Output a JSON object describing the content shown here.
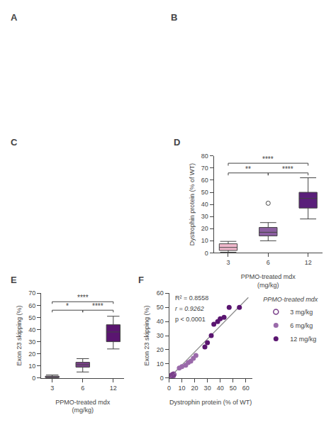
{
  "chart_data": [
    {
      "type": "blank",
      "title": "A"
    },
    {
      "type": "blank",
      "title": "B"
    },
    {
      "type": "blank",
      "title": "C"
    },
    {
      "type": "box",
      "title": "D",
      "xlabel": "PPMO-treated mdx\n(mg/kg)",
      "ylabel": "Dystrophin protein (% of WT)",
      "categories": [
        "3",
        "6",
        "12"
      ],
      "values": [
        {
          "whisker_low": 0.5,
          "q1": 2.0,
          "median": 4.5,
          "q3": 7.5,
          "whisker_high": 9.5,
          "outliers": []
        },
        {
          "whisker_low": 10,
          "q1": 14,
          "median": 17,
          "q3": 21,
          "whisker_high": 25,
          "outliers": [
            41
          ]
        },
        {
          "whisker_low": 28,
          "q1": 37,
          "median": 45,
          "q3": 50,
          "whisker_high": 62,
          "outliers": []
        }
      ],
      "colors": [
        "#f0b8cc",
        "#8b5fa0",
        "#5a1f7a"
      ],
      "ylim": [
        0,
        80
      ],
      "yticks": [
        0,
        10,
        20,
        30,
        40,
        50,
        60,
        70,
        80
      ],
      "grid": false,
      "brackets": [
        {
          "from": "3",
          "to": "6",
          "y": 66,
          "label": "**"
        },
        {
          "from": "6",
          "to": "12",
          "y": 66,
          "label": "****"
        },
        {
          "from": "3",
          "to": "12",
          "y": 74,
          "label": "****"
        }
      ]
    },
    {
      "type": "box",
      "title": "E",
      "xlabel": "PPMO-treated mdx\n(mg/kg)",
      "ylabel": "Exon 23 skipping (%)",
      "categories": [
        "3",
        "6",
        "12"
      ],
      "values": [
        {
          "whisker_low": 0.0,
          "q1": 0.3,
          "median": 1.0,
          "q3": 1.5,
          "whisker_high": 2.5,
          "outliers": []
        },
        {
          "whisker_low": 5,
          "q1": 9,
          "median": 11,
          "q3": 13,
          "whisker_high": 16,
          "outliers": []
        },
        {
          "whisker_low": 24,
          "q1": 30,
          "median": 38,
          "q3": 44,
          "whisker_high": 51,
          "outliers": []
        }
      ],
      "colors": [
        "#7a3f8a",
        "#7a3f8a",
        "#5a1570"
      ],
      "ylim": [
        0,
        70
      ],
      "yticks": [
        0,
        10,
        20,
        30,
        40,
        50,
        60,
        70
      ],
      "grid": false,
      "brackets": [
        {
          "from": "3",
          "to": "6",
          "y": 56,
          "label": "*"
        },
        {
          "from": "6",
          "to": "12",
          "y": 56,
          "label": "****"
        },
        {
          "from": "3",
          "to": "12",
          "y": 63,
          "label": "****"
        }
      ]
    },
    {
      "type": "scatter",
      "title": "F",
      "xlabel": "Dystrophin protein (% of WT)",
      "ylabel": "Exon 23 skipping (%)",
      "xlim": [
        0,
        65
      ],
      "ylim": [
        0,
        60
      ],
      "xticks": [
        0,
        10,
        20,
        30,
        40,
        50,
        60
      ],
      "yticks": [
        0,
        10,
        20,
        30,
        40,
        50,
        60
      ],
      "grid": false,
      "annotations": [
        "R² = 0.8558",
        "r = 0.9262",
        "p < 0.0001"
      ],
      "legend_title": "PPMO-treated mdx",
      "series": [
        {
          "name": "3 mg/kg",
          "color": "#7a3f8a",
          "marker": "open_circle",
          "x": [
            0.5,
            1.0,
            1.5,
            2.0,
            2.5,
            3.0,
            3.5
          ],
          "y": [
            0.5,
            1.0,
            1.0,
            1.5,
            2.0,
            1.5,
            2.5
          ]
        },
        {
          "name": "6 mg/kg",
          "color": "#9a6aaa",
          "marker": "circle",
          "x": [
            8,
            10,
            13,
            15,
            17,
            19,
            21
          ],
          "y": [
            7,
            8,
            9,
            11,
            12,
            14,
            16
          ]
        },
        {
          "name": "12 mg/kg",
          "color": "#5a1570",
          "marker": "circle",
          "x": [
            28,
            30,
            33,
            35,
            38,
            40,
            43,
            47,
            55
          ],
          "y": [
            22,
            25,
            30,
            38,
            40,
            42,
            43,
            50,
            50
          ]
        }
      ],
      "fit_line": {
        "x": [
          0,
          62
        ],
        "y": [
          0,
          57
        ],
        "color": "#888888"
      }
    }
  ]
}
